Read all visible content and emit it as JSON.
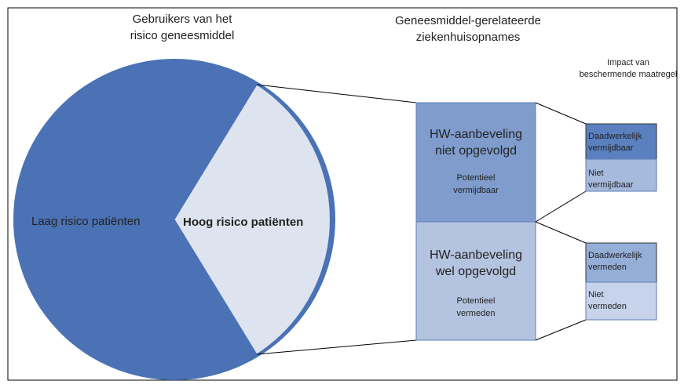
{
  "titles": {
    "users": [
      "Gebruikers van het",
      "risico geneesmiddel"
    ],
    "admissions": [
      "Geneesmiddel-gerelateerde",
      "ziekenhuisopnames"
    ],
    "impact": [
      "Impact van",
      "beschermende maatregel"
    ]
  },
  "pie": {
    "low": "Laag risico patiënten",
    "high": "Hoog risico patiënten"
  },
  "boxes": {
    "not_followed": {
      "title": [
        "HW-aanbeveling",
        "niet opgevolgd"
      ],
      "sub": [
        "Potentieel",
        "vermijdbaar"
      ]
    },
    "followed": {
      "title": [
        "HW-aanbeveling",
        "wel opgevolgd"
      ],
      "sub": [
        "Potentieel",
        "vermeden"
      ]
    }
  },
  "impact": {
    "avoidable": [
      "Daadwerkelijk",
      "vermijdbaar"
    ],
    "not_avoidable": [
      "Niet",
      "vermijdbaar"
    ],
    "avoided": [
      "Daadwerkelijk",
      "vermeden"
    ],
    "not_avoided": [
      "Niet",
      "vermeden"
    ]
  }
}
